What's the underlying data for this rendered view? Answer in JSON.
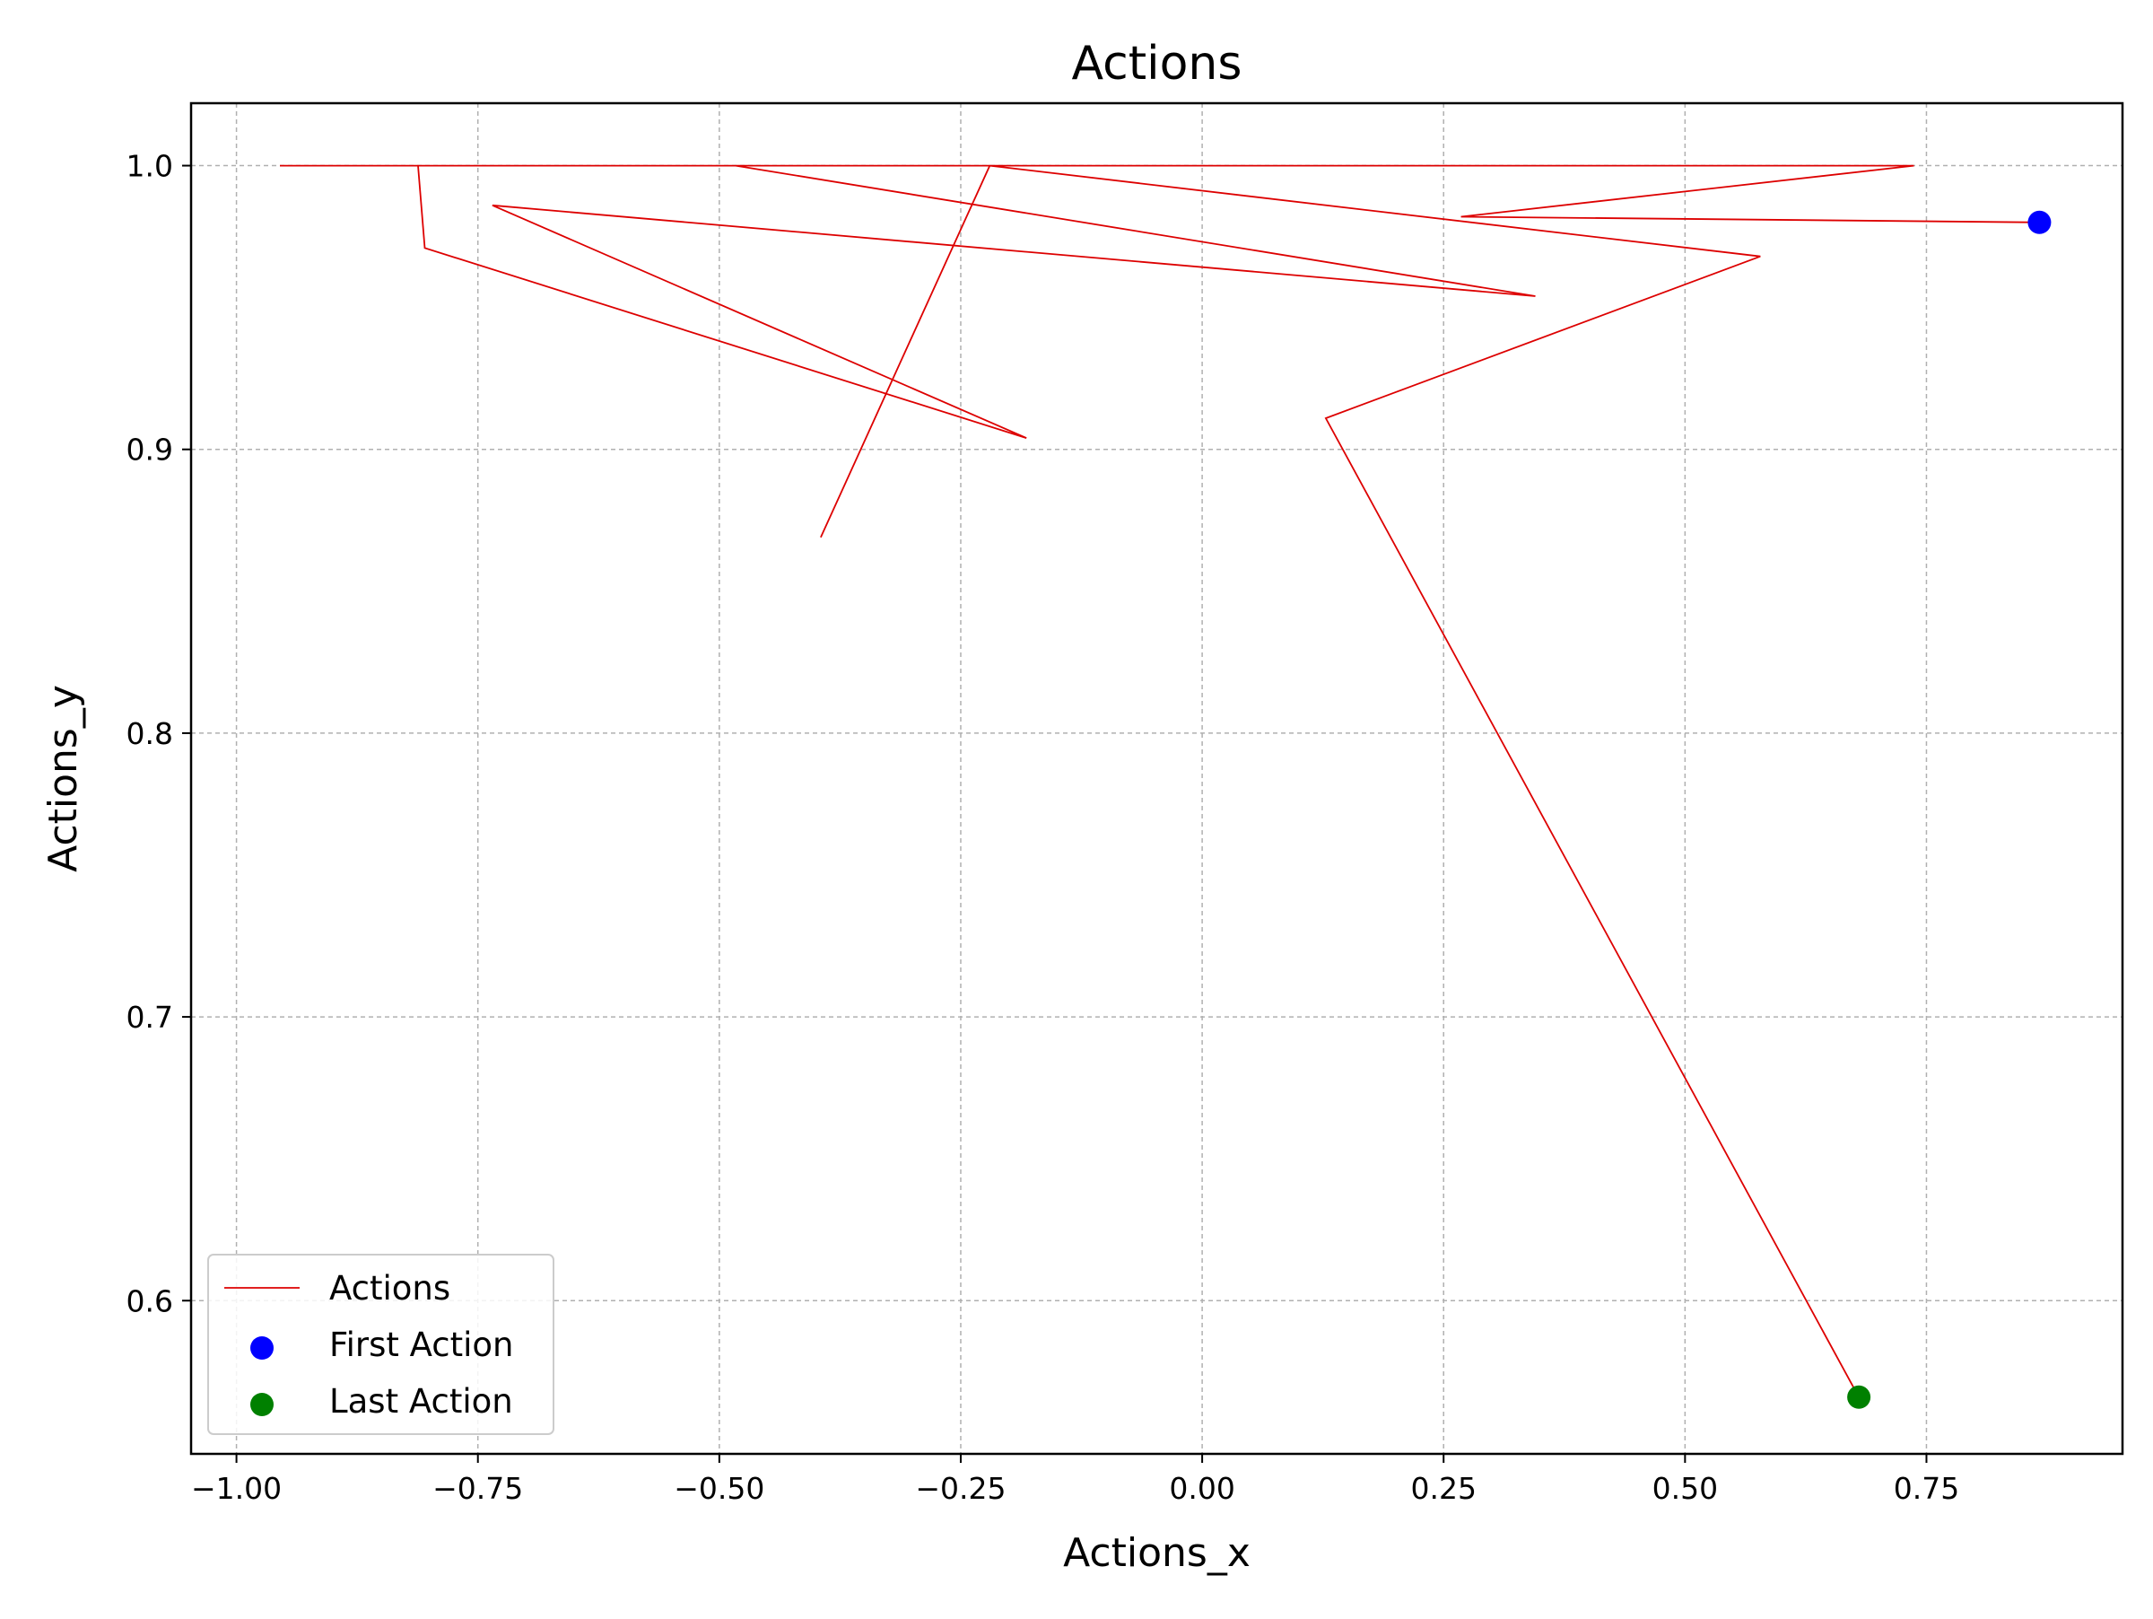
{
  "chart_data": {
    "type": "line",
    "title": "Actions",
    "xlabel": "Actions_x",
    "ylabel": "Actions_y",
    "xlim": [
      -1.047,
      0.953
    ],
    "ylim": [
      0.546,
      1.022
    ],
    "xticks": [
      -1.0,
      -0.75,
      -0.5,
      -0.25,
      0.0,
      0.25,
      0.5,
      0.75
    ],
    "xtick_labels": [
      "−1.00",
      "−0.75",
      "−0.50",
      "−0.25",
      "0.00",
      "0.25",
      "0.50",
      "0.75"
    ],
    "yticks": [
      0.6,
      0.7,
      0.8,
      0.9,
      1.0
    ],
    "ytick_labels": [
      "0.6",
      "0.7",
      "0.8",
      "0.9",
      "1.0"
    ],
    "grid": true,
    "legend_position": "lower-left",
    "series": [
      {
        "name": "Actions",
        "kind": "line",
        "color": "#dd0000",
        "points": [
          [
            0.867,
            0.98
          ],
          [
            0.268,
            0.982
          ],
          [
            0.737,
            1.0
          ],
          [
            -0.22,
            1.0
          ],
          [
            0.578,
            0.968
          ],
          [
            0.128,
            0.911
          ],
          [
            0.68,
            0.566
          ]
        ],
        "points_full": [
          [
            0.867,
            0.98
          ],
          [
            0.268,
            0.982
          ],
          [
            0.737,
            1.0
          ],
          [
            -0.955,
            1.0
          ],
          [
            -0.812,
            1.0
          ],
          [
            -0.805,
            0.971
          ],
          [
            -0.182,
            0.904
          ],
          [
            -0.735,
            0.986
          ],
          [
            0.345,
            0.954
          ],
          [
            -0.483,
            1.0
          ],
          [
            -0.236,
            1.0
          ],
          [
            -0.22,
            1.0
          ],
          [
            -0.395,
            0.869
          ],
          [
            -0.22,
            1.0
          ],
          [
            0.578,
            0.968
          ],
          [
            0.128,
            0.911
          ],
          [
            0.68,
            0.566
          ]
        ]
      },
      {
        "name": "First Action",
        "kind": "scatter",
        "color": "#0000ff",
        "points": [
          [
            0.867,
            0.98
          ]
        ]
      },
      {
        "name": "Last Action",
        "kind": "scatter",
        "color": "#008000",
        "points": [
          [
            0.68,
            0.566
          ]
        ]
      }
    ]
  }
}
